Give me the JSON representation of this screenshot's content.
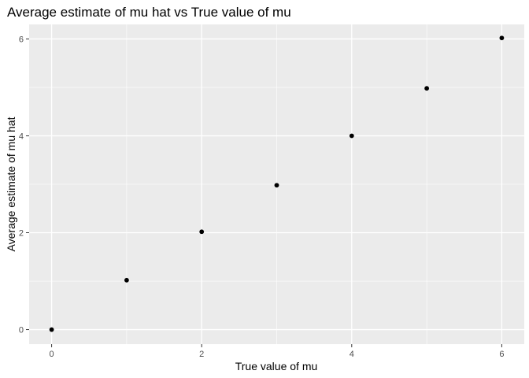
{
  "chart_data": {
    "type": "scatter",
    "title": "Average estimate of mu hat vs True value of mu",
    "xlabel": "True value of mu",
    "ylabel": "Average estimate of mu hat",
    "x": [
      0,
      1,
      2,
      3,
      4,
      5,
      6
    ],
    "y": [
      0.0,
      1.02,
      2.02,
      2.98,
      4.0,
      4.98,
      6.02
    ],
    "xlim": [
      -0.3,
      6.3
    ],
    "ylim": [
      -0.3,
      6.3
    ],
    "x_ticks": [
      0,
      2,
      4,
      6
    ],
    "y_ticks": [
      0,
      2,
      4,
      6
    ],
    "x_tick_labels": [
      "0",
      "2",
      "4",
      "6"
    ],
    "y_tick_labels": [
      "0",
      "2",
      "4",
      "6"
    ],
    "grid": true,
    "legend": "none",
    "colors": {
      "panel_background": "#ebebeb",
      "grid_major": "#ffffff",
      "point": "#000000",
      "tick_text": "#4d4d4d"
    }
  }
}
